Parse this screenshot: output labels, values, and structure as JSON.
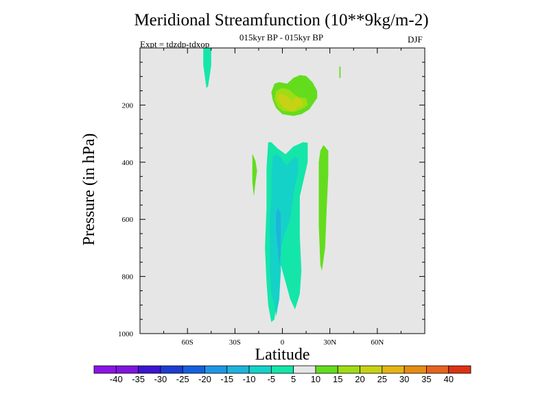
{
  "chart_data": {
    "type": "contour",
    "title": "Meridional Streamfunction (10**9kg/m-2)",
    "subtitle": "015kyr BP - 015kyr BP",
    "left_label": "Expt = tdzdp-tdxop",
    "right_label": "DJF",
    "xlabel": "Latitude",
    "ylabel": "Pressure (in hPa)",
    "xlim": [
      -90,
      90
    ],
    "ylim": [
      0,
      1000
    ],
    "x_ticks": [
      {
        "value": -60,
        "label": "60S"
      },
      {
        "value": -30,
        "label": "30S"
      },
      {
        "value": 0,
        "label": "0"
      },
      {
        "value": 30,
        "label": "30N"
      },
      {
        "value": 60,
        "label": "60N"
      }
    ],
    "y_ticks": [
      {
        "value": 200,
        "label": "200"
      },
      {
        "value": 400,
        "label": "400"
      },
      {
        "value": 600,
        "label": "600"
      },
      {
        "value": 800,
        "label": "800"
      },
      {
        "value": 1000,
        "label": "1000"
      }
    ],
    "background_color": "#e6e6e6",
    "colorbar": {
      "levels": [
        "-40",
        "-35",
        "-30",
        "-25",
        "-20",
        "-15",
        "-10",
        "-5",
        "5",
        "10",
        "15",
        "20",
        "25",
        "30",
        "35",
        "40"
      ],
      "colors": [
        "#7f14e0",
        "#3c14d2",
        "#1e3cd2",
        "#1460dc",
        "#1e96e6",
        "#1eb4dc",
        "#14d2c8",
        "#14e6aa",
        "#e6e6e6",
        "#64dc1e",
        "#a0dc14",
        "#c8d214",
        "#e6b414",
        "#e68c14",
        "#e6641e",
        "#dc3214"
      ]
    },
    "regions": [
      {
        "name": "southern-cell-outer",
        "value": -5,
        "color": "#14e6aa",
        "points": [
          [
            -9,
            330
          ],
          [
            -7,
            330
          ],
          [
            -3,
            352
          ],
          [
            2,
            372
          ],
          [
            7,
            345
          ],
          [
            13,
            330
          ],
          [
            16,
            332
          ],
          [
            16,
            400
          ],
          [
            11,
            520
          ],
          [
            11,
            660
          ],
          [
            12,
            780
          ],
          [
            11,
            860
          ],
          [
            10,
            880
          ],
          [
            8,
            915
          ],
          [
            5,
            880
          ],
          [
            2,
            820
          ],
          [
            -1,
            760
          ],
          [
            -2,
            800
          ],
          [
            -4,
            900
          ],
          [
            -5,
            950
          ],
          [
            -7,
            960
          ],
          [
            -9,
            900
          ],
          [
            -10,
            820
          ],
          [
            -11,
            700
          ],
          [
            -10,
            560
          ],
          [
            -10,
            420
          ]
        ]
      },
      {
        "name": "southern-cell-inner",
        "value": -10,
        "color": "#14d2c8",
        "points": [
          [
            -6,
            380
          ],
          [
            -4,
            372
          ],
          [
            -1,
            382
          ],
          [
            1,
            400
          ],
          [
            3,
            410
          ],
          [
            5,
            395
          ],
          [
            8,
            380
          ],
          [
            10,
            390
          ],
          [
            10,
            440
          ],
          [
            8,
            480
          ],
          [
            7,
            520
          ],
          [
            5,
            600
          ],
          [
            1,
            660
          ],
          [
            -1,
            700
          ],
          [
            -1,
            780
          ],
          [
            -2,
            880
          ],
          [
            -4,
            940
          ],
          [
            -5,
            900
          ],
          [
            -7,
            860
          ],
          [
            -8,
            780
          ],
          [
            -8,
            700
          ],
          [
            -8,
            600
          ],
          [
            -7,
            520
          ],
          [
            -7,
            440
          ]
        ]
      },
      {
        "name": "southern-cell-core",
        "value": -15,
        "color": "#1eb4dc",
        "points": [
          [
            -3,
            560
          ],
          [
            -1,
            580
          ],
          [
            -1,
            650
          ],
          [
            -1,
            720
          ],
          [
            -2,
            760
          ],
          [
            -3,
            700
          ],
          [
            -4,
            640
          ],
          [
            -4,
            580
          ]
        ]
      },
      {
        "name": "west-band",
        "value": 5,
        "color": "#64dc1e",
        "points": [
          [
            -19,
            370
          ],
          [
            -17,
            395
          ],
          [
            -16,
            430
          ],
          [
            -17,
            470
          ],
          [
            -18,
            520
          ],
          [
            -19,
            470
          ]
        ]
      },
      {
        "name": "east-band",
        "value": 5,
        "color": "#64dc1e",
        "points": [
          [
            24,
            360
          ],
          [
            26,
            340
          ],
          [
            29,
            360
          ],
          [
            29,
            440
          ],
          [
            28,
            560
          ],
          [
            27,
            700
          ],
          [
            25,
            780
          ],
          [
            24,
            760
          ],
          [
            23,
            620
          ],
          [
            23,
            460
          ],
          [
            23,
            400
          ]
        ]
      },
      {
        "name": "northern-strip",
        "value": -5,
        "color": "#14e6aa",
        "points": [
          [
            -50,
            0
          ],
          [
            -45,
            0
          ],
          [
            -45,
            60
          ],
          [
            -46,
            100
          ],
          [
            -47,
            135
          ],
          [
            -48,
            140
          ],
          [
            -49,
            100
          ],
          [
            -50,
            60
          ]
        ]
      },
      {
        "name": "thin-line",
        "value": 5,
        "color": "#64dc1e",
        "points": [
          [
            36,
            65
          ],
          [
            36.8,
            65
          ],
          [
            36.8,
            105
          ],
          [
            36,
            105
          ]
        ]
      },
      {
        "name": "upper-cell-outer",
        "value": 5,
        "color": "#64dc1e",
        "points": [
          [
            -5,
            125
          ],
          [
            -2,
            120
          ],
          [
            3,
            125
          ],
          [
            7,
            105
          ],
          [
            11,
            95
          ],
          [
            15,
            98
          ],
          [
            19,
            120
          ],
          [
            22,
            150
          ],
          [
            22,
            175
          ],
          [
            17,
            215
          ],
          [
            12,
            232
          ],
          [
            7,
            238
          ],
          [
            0,
            232
          ],
          [
            -4,
            210
          ],
          [
            -6,
            185
          ],
          [
            -7,
            155
          ]
        ]
      },
      {
        "name": "upper-cell-mid",
        "value": 10,
        "color": "#a0dc14",
        "points": [
          [
            -4,
            150
          ],
          [
            0,
            140
          ],
          [
            4,
            145
          ],
          [
            7,
            160
          ],
          [
            10,
            172
          ],
          [
            15,
            176
          ],
          [
            16,
            200
          ],
          [
            12,
            215
          ],
          [
            7,
            225
          ],
          [
            0,
            220
          ],
          [
            -3,
            205
          ],
          [
            -5,
            180
          ]
        ]
      },
      {
        "name": "upper-cell-inner",
        "value": 15,
        "color": "#c8d214",
        "points": [
          [
            -3,
            165
          ],
          [
            -1,
            160
          ],
          [
            3,
            168
          ],
          [
            5,
            182
          ],
          [
            6,
            192
          ],
          [
            7,
            180
          ],
          [
            9,
            170
          ],
          [
            12,
            182
          ],
          [
            13,
            200
          ],
          [
            10,
            208
          ],
          [
            6,
            222
          ],
          [
            3,
            215
          ],
          [
            0,
            205
          ],
          [
            -1,
            192
          ],
          [
            -3,
            182
          ]
        ]
      }
    ]
  }
}
